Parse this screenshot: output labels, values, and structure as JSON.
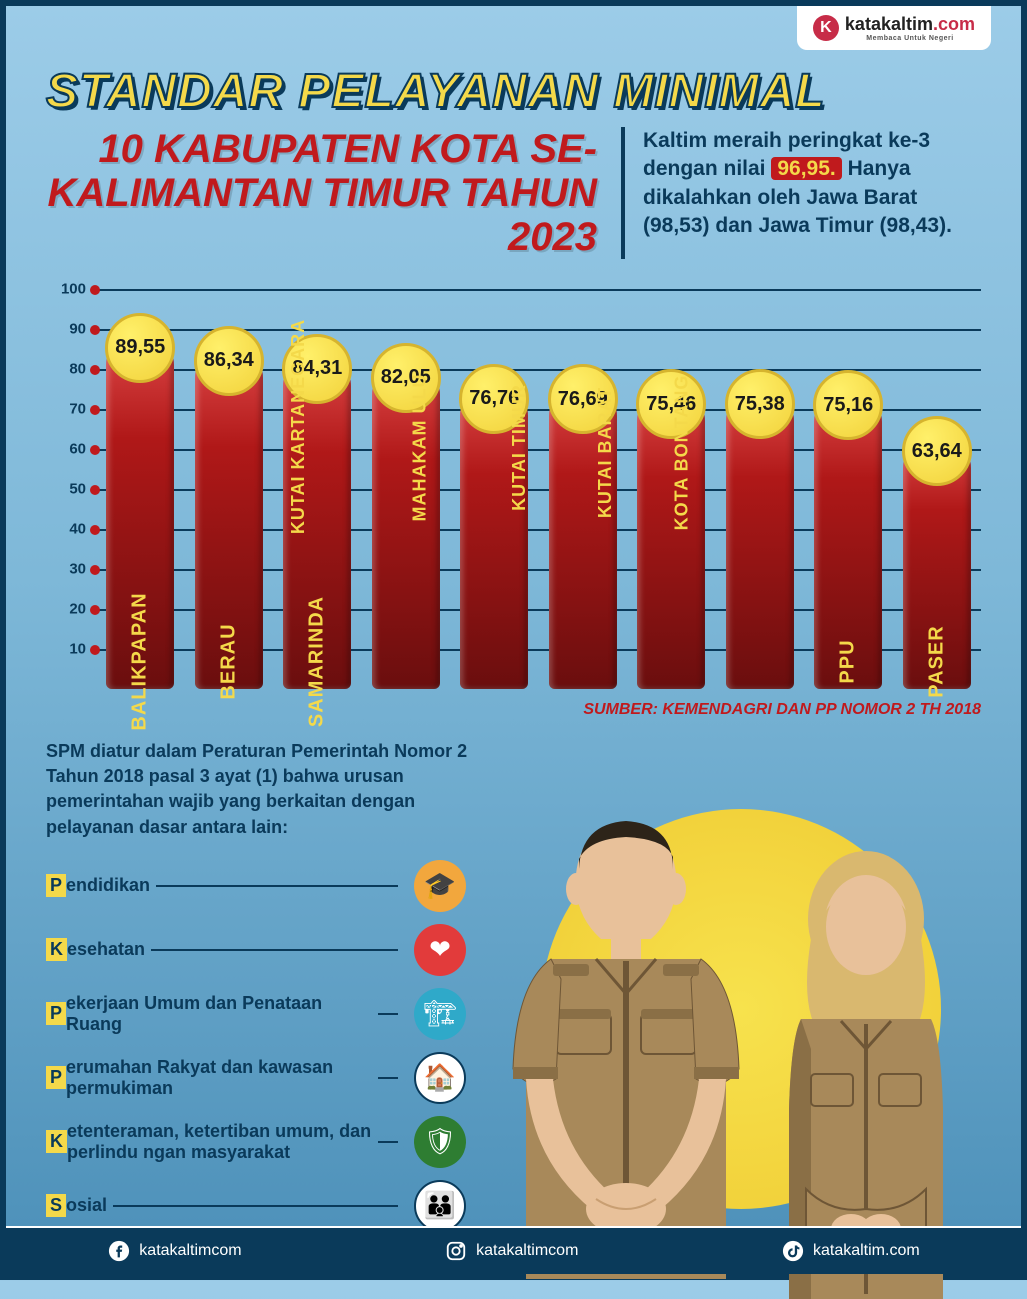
{
  "brand": {
    "name_html": "katakaltim",
    "suffix": ".com",
    "tagline": "Membaca Untuk Negeri",
    "icon_letter": "K"
  },
  "header": {
    "title": "STANDAR PELAYANAN MINIMAL",
    "subtitle": "10 KABUPATEN KOTA SE-KALIMANTAN TIMUR TAHUN 2023",
    "summary_pre": "Kaltim meraih peringkat ke-3 dengan nilai ",
    "summary_hl": "96,95.",
    "summary_post": " Hanya dikalahkan oleh Jawa Barat (98,53) dan Jawa Timur (98,43)."
  },
  "chart": {
    "type": "bar",
    "ylim": [
      0,
      100
    ],
    "yticks": [
      10,
      20,
      30,
      40,
      50,
      60,
      70,
      80,
      90,
      100
    ],
    "grid_color": "#0a3a5a",
    "tick_dot_color": "#c01a1d",
    "bar_gradient_top": "#e04a4a",
    "bar_gradient_mid": "#b01818",
    "bar_gradient_bottom": "#6a0e0e",
    "badge_fill": "#f2d23b",
    "badge_border": "#d6b42e",
    "label_color": "#f4d94a",
    "items": [
      {
        "label": "BALIKPAPAN",
        "value": 89.55,
        "text": "89,55"
      },
      {
        "label": "BERAU",
        "value": 86.34,
        "text": "86,34"
      },
      {
        "label": "SAMARINDA",
        "value": 84.31,
        "text": "84,31"
      },
      {
        "label": "KUTAI KARTANEGARA",
        "value": 82.05,
        "text": "82,05"
      },
      {
        "label": "MAHAKAM ULU",
        "value": 76.76,
        "text": "76,76"
      },
      {
        "label": "KUTAI TIMUR",
        "value": 76.69,
        "text": "76,69"
      },
      {
        "label": "KUTAI BARAT",
        "value": 75.46,
        "text": "75,46"
      },
      {
        "label": "KOTA BONTANG",
        "value": 75.38,
        "text": "75,38"
      },
      {
        "label": "PPU",
        "value": 75.16,
        "text": "75,16"
      },
      {
        "label": "PASER",
        "value": 63.64,
        "text": "63,64"
      }
    ],
    "source": "SUMBER: KEMENDAGRI DAN PP NOMOR 2 TH 2018"
  },
  "spm": {
    "text": "SPM diatur dalam Peraturan Pemerintah Nomor 2 Tahun 2018 pasal 3 ayat (1) bahwa urusan pemerintahan wajib yang berkaitan dengan pelayanan dasar antara lain:",
    "categories": [
      {
        "label": "Pendidikan",
        "icon": "🎓",
        "color": "#f2a73d"
      },
      {
        "label": "Kesehatan",
        "icon": "❤",
        "color": "#e23b3b"
      },
      {
        "label": "Pekerjaan Umum dan Penataan Ruang",
        "icon": "🏗",
        "color": "#2fa9c9"
      },
      {
        "label": "Perumahan Rakyat dan kawasan permukiman",
        "icon": "🏠",
        "color": "#ffffff"
      },
      {
        "label": "Ketenteraman, ketertiban umum, dan perlindu ngan masyarakat",
        "icon": "🛡",
        "color": "#2e7d32"
      },
      {
        "label": "Sosial",
        "icon": "👪",
        "color": "#ffffff"
      }
    ]
  },
  "footer": {
    "items": [
      {
        "platform": "facebook",
        "handle": "katakaltimcom"
      },
      {
        "platform": "instagram",
        "handle": "katakaltimcom"
      },
      {
        "platform": "tiktok",
        "handle": "katakaltim.com"
      }
    ]
  },
  "colors": {
    "bg_top": "#9ccce8",
    "bg_bottom": "#4b8fb8",
    "border": "#0a3a5a",
    "title_yellow": "#f4d94a",
    "title_stroke": "#0a3a5a",
    "subtitle_red": "#c01a1d",
    "text_navy": "#0a3a5a",
    "sun": "#f2d23b",
    "footer_bg": "#0a3a5a",
    "khaki_uniform": "#a8895a",
    "khaki_shade": "#8a6f46",
    "skin": "#e8c19a",
    "hair": "#2d2419"
  }
}
